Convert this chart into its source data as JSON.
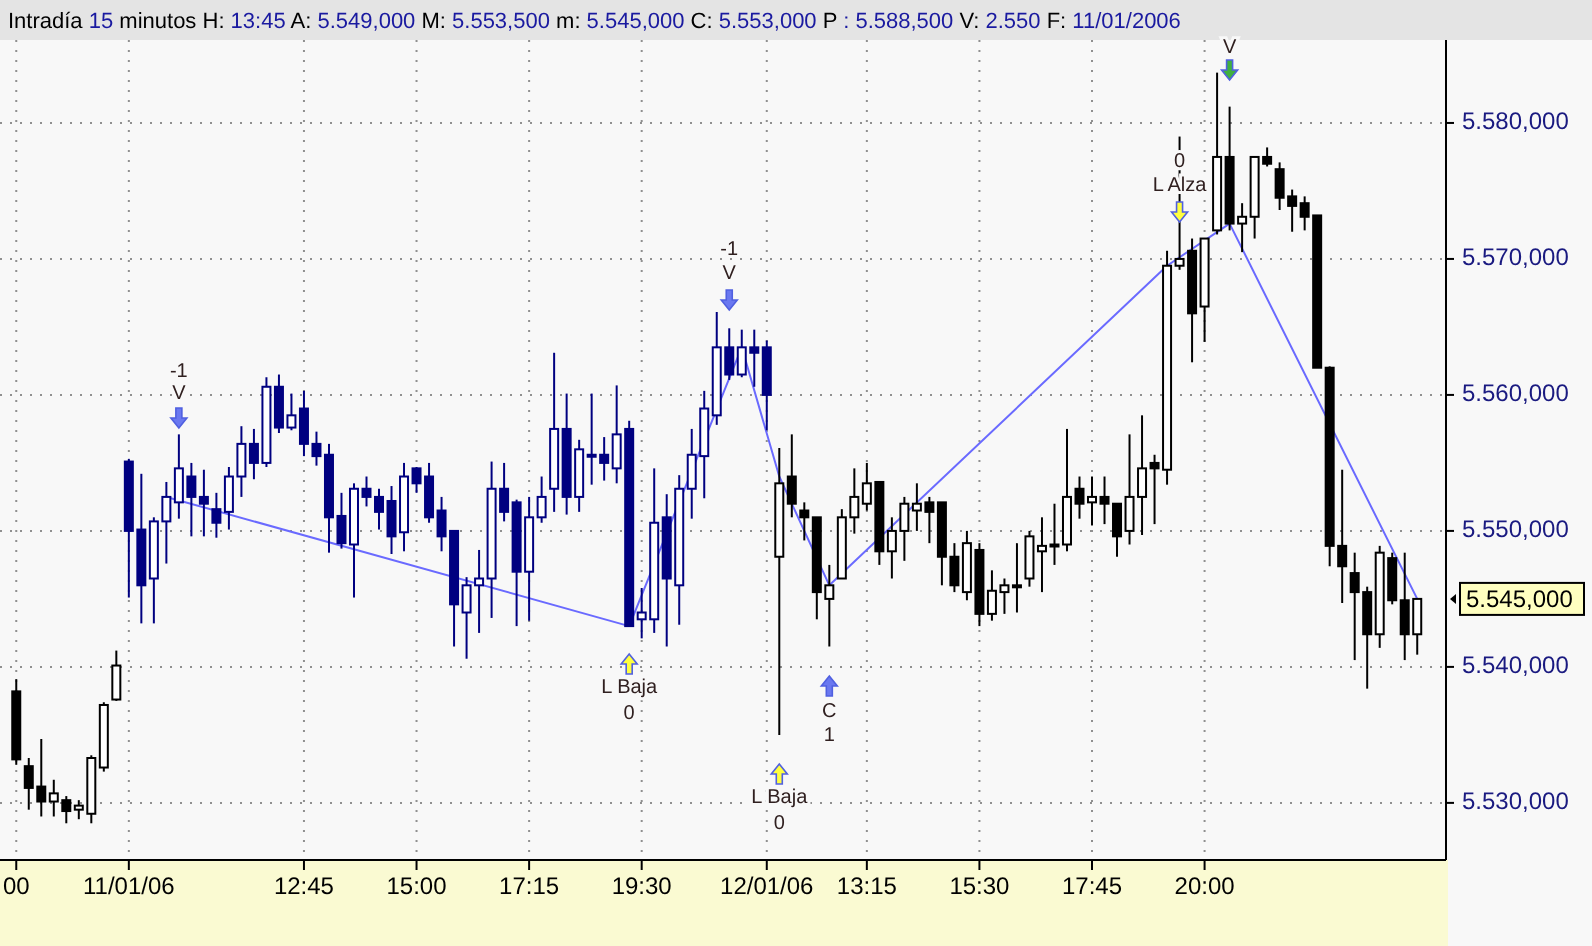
{
  "chart_data": {
    "type": "candlestick",
    "title": "Intradía 15 minutos H: 13:45 A: 5.549,000 M: 5.553,500 m: 5.545,000 C: 5.553,000 P : 5.588,500 V: 2.550 F: 11/01/2006",
    "categories": [
      "00",
      null,
      null,
      null,
      null,
      null,
      null,
      null,
      null,
      "11/01/06",
      null,
      null,
      null,
      null,
      null,
      null,
      null,
      null,
      null,
      null,
      null,
      null,
      null,
      "12:45",
      null,
      null,
      null,
      null,
      null,
      null,
      null,
      null,
      "15:00",
      null,
      null,
      null,
      null,
      null,
      null,
      null,
      null,
      "17:15",
      null,
      null,
      null,
      null,
      null,
      null,
      null,
      null,
      "19:30",
      null,
      null,
      null,
      null,
      null,
      null,
      null,
      null,
      null,
      "12/01/06",
      null,
      null,
      null,
      null,
      null,
      null,
      null,
      "13:15",
      null,
      null,
      null,
      null,
      null,
      null,
      null,
      null,
      "15:30",
      null,
      null,
      null,
      null,
      null,
      null,
      null,
      null,
      "17:45",
      null,
      null,
      null,
      null,
      null,
      null,
      null,
      null,
      "20:00",
      null,
      null,
      null,
      null,
      null,
      null,
      null,
      null,
      null,
      null,
      null,
      null,
      null,
      null,
      null,
      null,
      null
    ],
    "ylim": [
      5525.8,
      5586.1
    ],
    "yticks": [
      {
        "value": 5530,
        "label": "5.530,000"
      },
      {
        "value": 5540,
        "label": "5.540,000"
      },
      {
        "value": 5550,
        "label": "5.550,000"
      },
      {
        "value": 5560,
        "label": "5.560,000"
      },
      {
        "value": 5570,
        "label": "5.570,000"
      },
      {
        "value": 5580,
        "label": "5.580,000"
      }
    ],
    "grid": true,
    "series": [
      {
        "colors": [
          "#000000",
          "#000000",
          "#000000",
          "#000000",
          "#000000",
          "#000000",
          "#000000",
          "#000000",
          "#000000",
          "#000080",
          "#000080",
          "#000080",
          "#000080",
          "#000080",
          "#000080",
          "#000080",
          "#000080",
          "#000080",
          "#000080",
          "#000080",
          "#000080",
          "#000080",
          "#000080",
          "#000080",
          "#000080",
          "#000080",
          "#000080",
          "#000080",
          "#000080",
          "#000080",
          "#000080",
          "#000080",
          "#000080",
          "#000080",
          "#000080",
          "#000080",
          "#000080",
          "#000080",
          "#000080",
          "#000080",
          "#000080",
          "#000080",
          "#000080",
          "#000080",
          "#000080",
          "#000080",
          "#000080",
          "#000080",
          "#000080",
          "#000080",
          "#000080",
          "#000080",
          "#000080",
          "#000080",
          "#000080",
          "#000080",
          "#000080",
          "#000080",
          "#000080",
          "#000080",
          "#000080",
          "#000000",
          "#000000",
          "#000000",
          "#000000",
          "#000000",
          "#000000",
          "#000000",
          "#000000",
          "#000000",
          "#000000",
          "#000000",
          "#000000",
          "#000000",
          "#000000",
          "#000000",
          "#000000",
          "#000000",
          "#000000",
          "#000000",
          "#000000",
          "#000000",
          "#000000",
          "#000000",
          "#000000",
          "#000000",
          "#000000",
          "#000000",
          "#000000",
          "#000000",
          "#000000",
          "#000000",
          "#000000",
          "#000000",
          "#000000",
          "#000000",
          "#000000",
          "#000000",
          "#000000",
          "#000000",
          "#000000",
          "#000000",
          "#000000",
          "#000000",
          "#000000",
          "#000000",
          "#000000",
          "#000000",
          "#000000",
          "#000000",
          "#000000",
          "#000000",
          "#000000"
        ],
        "ohlc": [
          [
            5538.2,
            5539.1,
            5532.8,
            5533.2
          ],
          [
            5532.7,
            5533.3,
            5529.5,
            5531.1
          ],
          [
            5531.2,
            5534.7,
            5529,
            5530.1
          ],
          [
            5530.1,
            5531.7,
            5529,
            5530.7
          ],
          [
            5530.2,
            5530.5,
            5528.5,
            5529.4
          ],
          [
            5529.5,
            5530.2,
            5528.8,
            5529.8
          ],
          [
            5529.2,
            5533.5,
            5528.5,
            5533.3
          ],
          [
            5532.6,
            5537.4,
            5532.3,
            5537.2
          ],
          [
            5537.6,
            5541.2,
            5537.5,
            5540.1
          ],
          [
            5555.1,
            5555.3,
            5545.1,
            5550.0
          ],
          [
            5550.1,
            5554.2,
            5543.2,
            5546.0
          ],
          [
            5546.5,
            5551.0,
            5543.2,
            5550.7
          ],
          [
            5550.7,
            5553.6,
            5547.6,
            5552.5
          ],
          [
            5552.1,
            5557.1,
            5550.9,
            5554.6
          ],
          [
            5554.0,
            5555.0,
            5549.6,
            5552.5
          ],
          [
            5552.5,
            5554.5,
            5549.6,
            5552.0
          ],
          [
            5551.6,
            5552.8,
            5549.5,
            5550.6
          ],
          [
            5551.4,
            5554.7,
            5550.1,
            5554.0
          ],
          [
            5554.0,
            5557.7,
            5552.5,
            5556.4
          ],
          [
            5556.4,
            5557.5,
            5553.8,
            5555.0
          ],
          [
            5555.0,
            5561.3,
            5554.7,
            5560.6
          ],
          [
            5560.6,
            5561.5,
            5557.2,
            5557.6
          ],
          [
            5557.6,
            5560.1,
            5557.4,
            5558.5
          ],
          [
            5559.0,
            5560.3,
            5555.5,
            5556.4
          ],
          [
            5556.4,
            5557.3,
            5554.8,
            5555.5
          ],
          [
            5555.6,
            5556.4,
            5548.4,
            5551.0
          ],
          [
            5551.1,
            5552.8,
            5548.7,
            5549.1
          ],
          [
            5549.0,
            5553.5,
            5545.1,
            5553.1
          ],
          [
            5553.1,
            5554.0,
            5551.8,
            5552.5
          ],
          [
            5552.5,
            5553.1,
            5550.1,
            5551.4
          ],
          [
            5552.2,
            5553.3,
            5548.3,
            5549.6
          ],
          [
            5549.9,
            5555.0,
            5548.5,
            5554.0
          ],
          [
            5554.6,
            5554.7,
            5552.8,
            5553.5
          ],
          [
            5554.0,
            5555.0,
            5550.6,
            5551.0
          ],
          [
            5551.5,
            5552.5,
            5548.5,
            5549.6
          ],
          [
            5550.0,
            5550.0,
            5541.5,
            5544.6
          ],
          [
            5544.0,
            5546.6,
            5540.6,
            5546.0
          ],
          [
            5546.0,
            5548.6,
            5542.5,
            5546.5
          ],
          [
            5546.5,
            5555.1,
            5543.6,
            5553.1
          ],
          [
            5553.1,
            5555.0,
            5550.7,
            5551.4
          ],
          [
            5552.1,
            5552.3,
            5543.0,
            5547.0
          ],
          [
            5547.0,
            5552.5,
            5543.4,
            5551.0
          ],
          [
            5551.0,
            5554.0,
            5550.6,
            5552.5
          ],
          [
            5553.1,
            5563.1,
            5551.4,
            5557.5
          ],
          [
            5557.5,
            5560.1,
            5551.2,
            5552.5
          ],
          [
            5552.5,
            5556.7,
            5551.4,
            5556.0
          ],
          [
            5555.6,
            5560.1,
            5553.4,
            5555.6
          ],
          [
            5555.6,
            5556.9,
            5553.7,
            5555.0
          ],
          [
            5554.6,
            5560.7,
            5553.5,
            5557.1
          ],
          [
            5557.5,
            5558.1,
            5543.0,
            5543.0
          ],
          [
            5543.5,
            5545.8,
            5542.1,
            5544.0
          ],
          [
            5543.5,
            5554.6,
            5542.5,
            5550.6
          ],
          [
            5551.0,
            5552.7,
            5541.5,
            5546.5
          ],
          [
            5546.0,
            5554.1,
            5543.1,
            5553.1
          ],
          [
            5553.1,
            5557.5,
            5550.9,
            5555.6
          ],
          [
            5555.5,
            5560.3,
            5552.4,
            5559.0
          ],
          [
            5558.5,
            5566.1,
            5557.8,
            5563.5
          ],
          [
            5563.5,
            5564.9,
            5561.1,
            5561.5
          ],
          [
            5561.5,
            5564.8,
            5561.3,
            5563.5
          ],
          [
            5563.5,
            5564.8,
            5560.6,
            5563.1
          ],
          [
            5563.5,
            5564.0,
            5557.4,
            5560.0
          ],
          [
            5548.1,
            5556.1,
            5535.0,
            5553.5
          ],
          [
            5554.0,
            5557.1,
            5551.0,
            5552.0
          ],
          [
            5551.5,
            5552.1,
            5549.3,
            5551.0
          ],
          [
            5551.0,
            5551.0,
            5543.5,
            5545.5
          ],
          [
            5545.0,
            5547.5,
            5541.5,
            5546.0
          ],
          [
            5546.5,
            5551.6,
            5546.5,
            5551.0
          ],
          [
            5551.0,
            5554.6,
            5549.8,
            5552.5
          ],
          [
            5552.0,
            5555.0,
            5551.5,
            5553.5
          ],
          [
            5553.6,
            5553.6,
            5547.5,
            5548.5
          ],
          [
            5548.5,
            5551.0,
            5546.5,
            5550.0
          ],
          [
            5550.0,
            5552.5,
            5547.8,
            5552.0
          ],
          [
            5551.5,
            5553.5,
            5550.0,
            5552.0
          ],
          [
            5552.1,
            5552.5,
            5549.1,
            5551.4
          ],
          [
            5552.1,
            5552.1,
            5546.0,
            5548.1
          ],
          [
            5548.1,
            5549.1,
            5545.5,
            5546.0
          ],
          [
            5545.5,
            5550.0,
            5544.9,
            5549.1
          ],
          [
            5548.6,
            5549.1,
            5543.0,
            5543.9
          ],
          [
            5543.9,
            5547.1,
            5543.4,
            5545.6
          ],
          [
            5545.5,
            5546.5,
            5543.9,
            5546.0
          ],
          [
            5546.0,
            5549.1,
            5544.0,
            5546.0
          ],
          [
            5546.5,
            5550.0,
            5545.9,
            5549.6
          ],
          [
            5548.5,
            5551.0,
            5545.5,
            5548.9
          ],
          [
            5549.0,
            5552.0,
            5547.5,
            5549.0
          ],
          [
            5549.0,
            5557.5,
            5548.5,
            5552.5
          ],
          [
            5553.1,
            5554.0,
            5550.9,
            5552.0
          ],
          [
            5552.1,
            5554.0,
            5550.4,
            5552.5
          ],
          [
            5552.5,
            5554.0,
            5550.5,
            5552.0
          ],
          [
            5552.0,
            5552.0,
            5548.1,
            5549.6
          ],
          [
            5550.0,
            5557.1,
            5549.0,
            5552.5
          ],
          [
            5552.5,
            5558.5,
            5549.7,
            5554.6
          ],
          [
            5555.0,
            5555.6,
            5550.5,
            5554.6
          ],
          [
            5554.5,
            5570.6,
            5553.4,
            5569.5
          ],
          [
            5569.5,
            5579.0,
            5569.2,
            5570.0
          ],
          [
            5570.6,
            5571.5,
            5562.4,
            5566.0
          ],
          [
            5566.5,
            5571.5,
            5563.9,
            5571.5
          ],
          [
            5572.1,
            5583.7,
            5571.8,
            5577.5
          ],
          [
            5577.5,
            5581.2,
            5572.1,
            5572.6
          ],
          [
            5572.6,
            5574.1,
            5570.5,
            5573.1
          ],
          [
            5573.1,
            5577.5,
            5571.5,
            5577.5
          ],
          [
            5577.5,
            5578.2,
            5576.8,
            5577.0
          ],
          [
            5576.6,
            5577.1,
            5573.6,
            5574.5
          ],
          [
            5574.6,
            5575.1,
            5572.0,
            5573.9
          ],
          [
            5574.1,
            5574.6,
            5572.1,
            5573.1
          ],
          [
            5573.2,
            5573.2,
            5562.0,
            5562.0
          ],
          [
            5562.0,
            5562.1,
            5547.4,
            5548.9
          ],
          [
            5548.9,
            5554.5,
            5544.7,
            5547.4
          ],
          [
            5546.9,
            5548.4,
            5540.5,
            5545.5
          ],
          [
            5545.5,
            5545.9,
            5538.4,
            5542.4
          ],
          [
            5542.4,
            5548.9,
            5541.4,
            5548.4
          ],
          [
            5548.0,
            5548.4,
            5544.6,
            5544.9
          ],
          [
            5544.9,
            5548.4,
            5540.5,
            5542.4
          ],
          [
            5542.4,
            5545.0,
            5540.9,
            5545.0
          ]
        ]
      },
      {
        "type": "line",
        "color": "#6a6aff",
        "values": [
          null,
          null,
          null,
          null,
          null,
          null,
          null,
          null,
          null,
          null,
          null,
          null,
          5552.5,
          null,
          null,
          null,
          null,
          null,
          null,
          null,
          null,
          null,
          null,
          null,
          null,
          null,
          null,
          null,
          null,
          null,
          null,
          null,
          null,
          null,
          null,
          null,
          null,
          null,
          null,
          null,
          null,
          null,
          null,
          null,
          null,
          null,
          null,
          null,
          null,
          5543.0,
          null,
          null,
          null,
          null,
          null,
          null,
          null,
          null,
          5563.5,
          null,
          null,
          5554.0,
          null,
          null,
          null,
          5546.0,
          null,
          null,
          null,
          null,
          null,
          null,
          null,
          null,
          null,
          null,
          null,
          null,
          null,
          null,
          null,
          null,
          null,
          null,
          null,
          null,
          null,
          null,
          null,
          null,
          null,
          null,
          5569.5,
          null,
          null,
          null,
          null,
          5572.6,
          null,
          null,
          null,
          null,
          null,
          null,
          null,
          null,
          null,
          null,
          null,
          null,
          null,
          null,
          5545.0
        ]
      }
    ],
    "annotations": [
      "-1",
      "V",
      "-1",
      "V",
      "V",
      "L Baja",
      "0",
      "L Baja",
      "0",
      "C",
      "1",
      "0",
      "L Alza",
      "5.545,000"
    ]
  }
}
